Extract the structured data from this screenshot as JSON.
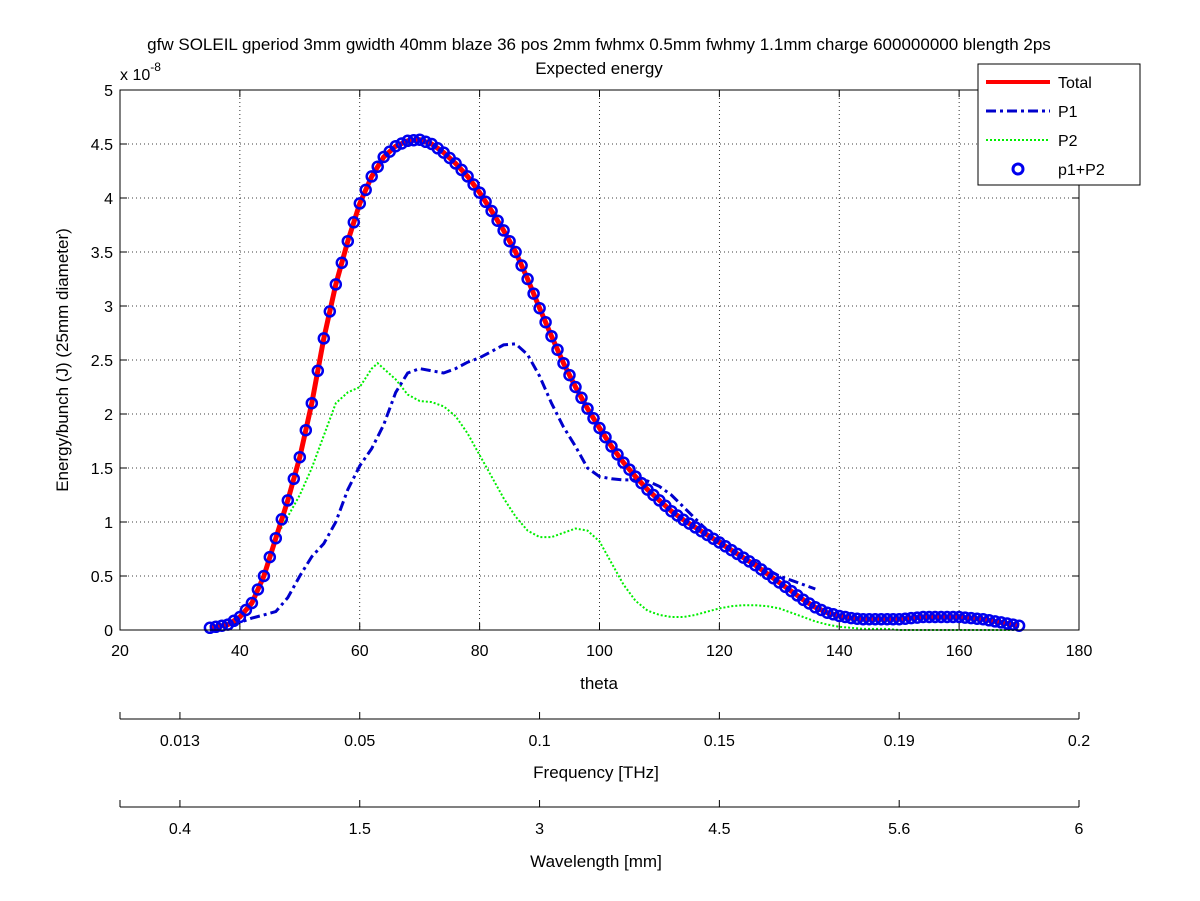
{
  "chart_data": {
    "type": "line",
    "title": "gfw SOLEIL gperiod 3mm gwidth 40mm blaze 36 pos 2mm fwhmx 0.5mm fwhmy 1.1mm charge 600000000 blength 2ps",
    "subtitle": "Expected energy",
    "xlabel": "theta",
    "ylabel": "Energy/bunch (J) (25mm diameter)",
    "y_exponent_label": "x 10",
    "y_exponent": "-8",
    "y_scale": 1e-08,
    "xlim": [
      20,
      180
    ],
    "ylim": [
      0,
      5
    ],
    "x_ticks": [
      20,
      40,
      60,
      80,
      100,
      120,
      140,
      160,
      180
    ],
    "y_ticks": [
      0,
      0.5,
      1,
      1.5,
      2,
      2.5,
      3,
      3.5,
      4,
      4.5,
      5
    ],
    "x_tick_labels": [
      "20",
      "40",
      "60",
      "80",
      "100",
      "120",
      "140",
      "160",
      "180"
    ],
    "y_tick_labels": [
      "0",
      "0.5",
      "1",
      "1.5",
      "2",
      "2.5",
      "3",
      "3.5",
      "4",
      "4.5",
      "5"
    ],
    "grid": true,
    "legend_position": "top-right",
    "series": [
      {
        "name": "Total",
        "color": "#ff0000",
        "style": "solid",
        "x": [
          35,
          38,
          40,
          42,
          44,
          46,
          48,
          50,
          52,
          54,
          56,
          58,
          60,
          62,
          64,
          66,
          68,
          70,
          72,
          74,
          76,
          78,
          80,
          82,
          84,
          86,
          88,
          90,
          92,
          94,
          96,
          98,
          100,
          102,
          104,
          106,
          108,
          110,
          112,
          114,
          116,
          118,
          120,
          122,
          124,
          126,
          128,
          130,
          132,
          134,
          136,
          138,
          140,
          142,
          144,
          146,
          148,
          150,
          152,
          154,
          156,
          158,
          160,
          162,
          164,
          166,
          168,
          170
        ],
        "y": [
          0.02,
          0.05,
          0.12,
          0.25,
          0.5,
          0.85,
          1.2,
          1.6,
          2.1,
          2.7,
          3.2,
          3.6,
          3.95,
          4.2,
          4.38,
          4.48,
          4.53,
          4.54,
          4.5,
          4.42,
          4.32,
          4.2,
          4.05,
          3.88,
          3.7,
          3.5,
          3.25,
          2.98,
          2.72,
          2.47,
          2.25,
          2.05,
          1.87,
          1.7,
          1.55,
          1.42,
          1.3,
          1.2,
          1.1,
          1.02,
          0.95,
          0.88,
          0.81,
          0.74,
          0.67,
          0.6,
          0.52,
          0.44,
          0.36,
          0.28,
          0.21,
          0.16,
          0.13,
          0.11,
          0.1,
          0.1,
          0.1,
          0.1,
          0.11,
          0.12,
          0.12,
          0.12,
          0.12,
          0.11,
          0.1,
          0.08,
          0.06,
          0.04
        ]
      },
      {
        "name": "P1",
        "color": "#0000cc",
        "style": "dashdot",
        "x": [
          35,
          38,
          40,
          42,
          44,
          46,
          48,
          50,
          52,
          54,
          56,
          58,
          60,
          62,
          64,
          66,
          68,
          70,
          72,
          74,
          76,
          78,
          80,
          82,
          84,
          86,
          88,
          90,
          92,
          94,
          96,
          98,
          100,
          102,
          104,
          106,
          108,
          110,
          112,
          114,
          116,
          118,
          120,
          122,
          124,
          126,
          128,
          130,
          132,
          134,
          136
        ],
        "y": [
          0.0,
          0.03,
          0.07,
          0.11,
          0.14,
          0.17,
          0.3,
          0.5,
          0.68,
          0.8,
          1.0,
          1.3,
          1.52,
          1.68,
          1.9,
          2.2,
          2.38,
          2.42,
          2.4,
          2.38,
          2.42,
          2.48,
          2.52,
          2.58,
          2.64,
          2.65,
          2.55,
          2.35,
          2.1,
          1.88,
          1.7,
          1.5,
          1.42,
          1.4,
          1.39,
          1.39,
          1.38,
          1.33,
          1.25,
          1.14,
          1.03,
          0.92,
          0.83,
          0.75,
          0.68,
          0.62,
          0.56,
          0.5,
          0.46,
          0.42,
          0.38
        ]
      },
      {
        "name": "P2",
        "color": "#00ee00",
        "style": "dotted",
        "x": [
          46,
          47,
          48,
          50,
          52,
          54,
          56,
          58,
          60,
          62,
          63,
          64,
          66,
          68,
          70,
          72,
          74,
          76,
          78,
          80,
          82,
          84,
          86,
          88,
          90,
          92,
          94,
          96,
          98,
          100,
          102,
          104,
          106,
          108,
          110,
          112,
          114,
          116,
          118,
          120,
          122,
          124,
          126,
          128,
          130,
          132,
          134,
          136,
          138,
          140,
          142,
          144,
          146,
          148,
          150,
          152,
          154,
          156,
          158,
          160,
          162,
          164,
          166,
          168,
          170
        ],
        "y": [
          0.88,
          0.95,
          1.05,
          1.25,
          1.5,
          1.8,
          2.1,
          2.2,
          2.25,
          2.42,
          2.47,
          2.42,
          2.32,
          2.18,
          2.12,
          2.11,
          2.07,
          1.98,
          1.82,
          1.62,
          1.42,
          1.22,
          1.05,
          0.92,
          0.86,
          0.86,
          0.9,
          0.94,
          0.92,
          0.82,
          0.62,
          0.42,
          0.27,
          0.18,
          0.14,
          0.12,
          0.12,
          0.14,
          0.17,
          0.2,
          0.22,
          0.23,
          0.23,
          0.22,
          0.2,
          0.16,
          0.12,
          0.08,
          0.05,
          0.03,
          0.02,
          0.01,
          0.01,
          0.01,
          0.0,
          0.0,
          0.0,
          0.0,
          0.0,
          0.0,
          0.0,
          0.0,
          0.0,
          0.0,
          0.0
        ]
      },
      {
        "name": "p1+P2",
        "color": "#0000ee",
        "style": "circles",
        "x_start": 35,
        "x_end": 170,
        "x_step": 1,
        "note_ref": "Total"
      }
    ]
  },
  "secondary_axes": [
    {
      "label": "Frequency [THz]",
      "ticks": [
        20,
        30,
        60,
        90,
        120,
        150,
        180
      ],
      "tick_labels": [
        "",
        "0.013",
        "0.05",
        "0.1",
        "0.15",
        "0.19",
        "0.2"
      ]
    },
    {
      "label": "Wavelength [mm]",
      "ticks": [
        20,
        30,
        60,
        90,
        120,
        150,
        180
      ],
      "tick_labels": [
        "",
        "0.4",
        "1.5",
        "3",
        "4.5",
        "5.6",
        "6"
      ]
    }
  ]
}
